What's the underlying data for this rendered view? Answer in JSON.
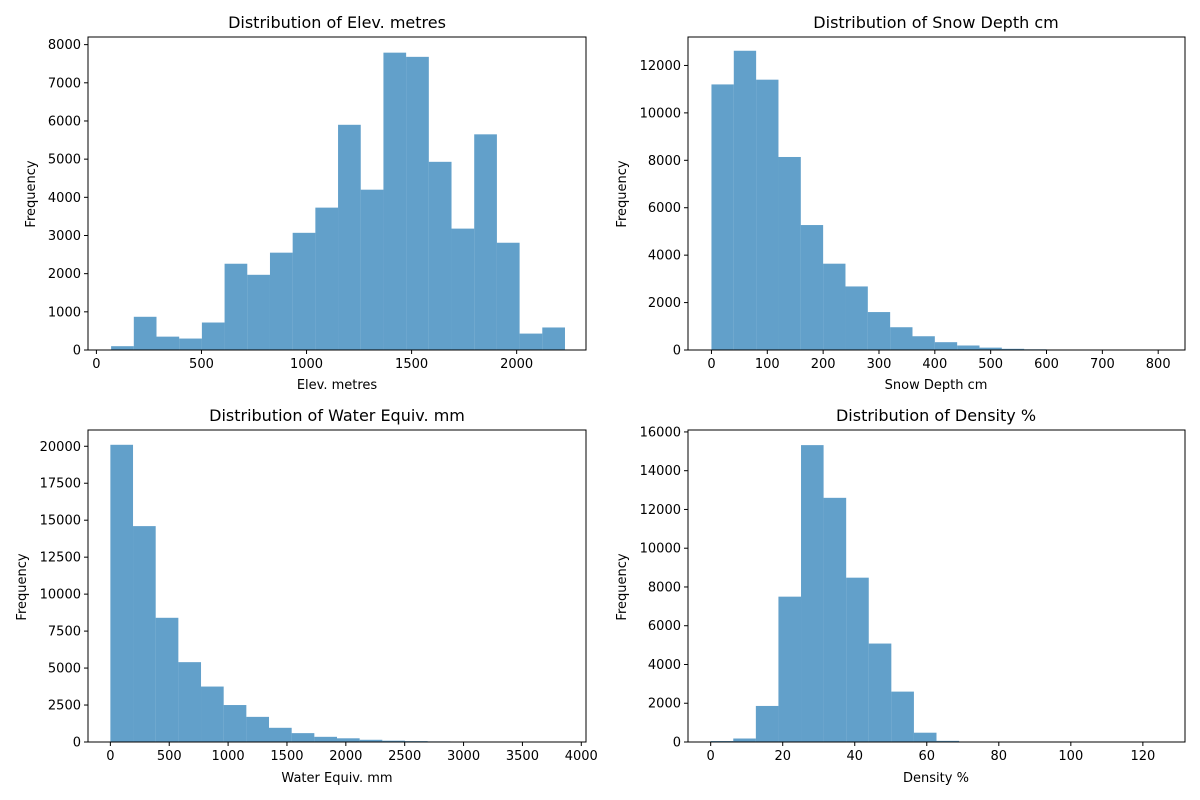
{
  "chart_data": [
    {
      "type": "bar",
      "title": "Distribution of Elev. metres",
      "xlabel": "Elev. metres",
      "ylabel": "Frequency",
      "xlim": [
        -40,
        2330
      ],
      "ylim": [
        0,
        8200
      ],
      "xticks": [
        0,
        500,
        1000,
        1500,
        2000
      ],
      "yticks": [
        0,
        1000,
        2000,
        3000,
        4000,
        5000,
        6000,
        7000,
        8000
      ],
      "bin_edges": [
        70,
        178,
        286,
        394,
        502,
        610,
        718,
        826,
        934,
        1042,
        1150,
        1258,
        1366,
        1474,
        1582,
        1690,
        1798,
        1906,
        2014,
        2122,
        2230
      ],
      "values": [
        100,
        870,
        350,
        300,
        720,
        2260,
        1970,
        2550,
        3070,
        3730,
        5900,
        4200,
        7790,
        7680,
        4930,
        3180,
        5650,
        2810,
        430,
        590
      ],
      "color": "#1f77b4",
      "opacity": 0.7
    },
    {
      "type": "bar",
      "title": "Distribution of Snow Depth cm",
      "xlabel": "Snow Depth cm",
      "ylabel": "Frequency",
      "xlim": [
        -42,
        848
      ],
      "ylim": [
        0,
        13200
      ],
      "xticks": [
        0,
        100,
        200,
        300,
        400,
        500,
        600,
        700,
        800
      ],
      "yticks": [
        0,
        2000,
        4000,
        6000,
        8000,
        10000,
        12000
      ],
      "bin_edges": [
        0,
        40,
        80,
        120,
        160,
        200,
        240,
        280,
        320,
        360,
        400,
        440,
        480,
        520,
        560,
        600,
        640,
        680,
        720,
        760,
        800
      ],
      "values": [
        11200,
        12620,
        11400,
        8140,
        5270,
        3640,
        2680,
        1600,
        960,
        580,
        330,
        190,
        100,
        50,
        30,
        10,
        5,
        5,
        2,
        2
      ],
      "color": "#1f77b4",
      "opacity": 0.7
    },
    {
      "type": "bar",
      "title": "Distribution of Water Equiv. mm",
      "xlabel": "Water Equiv. mm",
      "ylabel": "Frequency",
      "xlim": [
        -190,
        4040
      ],
      "ylim": [
        0,
        21100
      ],
      "xticks": [
        0,
        500,
        1000,
        1500,
        2000,
        2500,
        3000,
        3500,
        4000
      ],
      "yticks": [
        0,
        2500,
        5000,
        7500,
        10000,
        12500,
        15000,
        17500,
        20000
      ],
      "bin_edges": [
        0,
        192.5,
        385,
        577.5,
        770,
        962.5,
        1155,
        1347.5,
        1540,
        1732.5,
        1925,
        2117.5,
        2310,
        2502.5,
        2695,
        2887.5,
        3080,
        3272.5,
        3465,
        3657.5,
        3850
      ],
      "values": [
        20100,
        14600,
        8400,
        5400,
        3750,
        2500,
        1700,
        960,
        600,
        350,
        250,
        150,
        90,
        60,
        40,
        20,
        10,
        8,
        5,
        5
      ],
      "color": "#1f77b4",
      "opacity": 0.7
    },
    {
      "type": "bar",
      "title": "Distribution of Density %",
      "xlabel": "Density %",
      "ylabel": "Frequency",
      "xlim": [
        -6.3,
        131.7
      ],
      "ylim": [
        0,
        16100
      ],
      "xticks": [
        0,
        20,
        40,
        60,
        80,
        100,
        120
      ],
      "yticks": [
        0,
        2000,
        4000,
        6000,
        8000,
        10000,
        12000,
        14000,
        16000
      ],
      "bin_edges": [
        0,
        6.27,
        12.54,
        18.81,
        25.08,
        31.35,
        37.62,
        43.89,
        50.16,
        56.43,
        62.7,
        68.97,
        75.24,
        81.51,
        87.78,
        94.05,
        100.32,
        106.59,
        112.86,
        119.13,
        125.4
      ],
      "values": [
        50,
        180,
        1860,
        7500,
        15320,
        12600,
        8480,
        5080,
        2600,
        480,
        60,
        10,
        5,
        3,
        2,
        2,
        2,
        2,
        1,
        1
      ],
      "color": "#1f77b4",
      "opacity": 0.7
    }
  ]
}
